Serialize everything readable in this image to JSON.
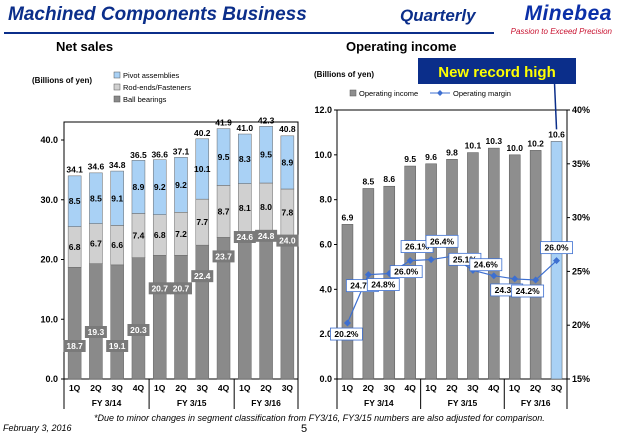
{
  "header": {
    "title": "Machined Components Business",
    "period": "Quarterly",
    "logo_name": "Minebea",
    "logo_tagline": "Passion to Exceed Precision"
  },
  "footer": {
    "note": "*Due to minor changes in segment classification from FY3/16, FY3/15 numbers are also adjusted for comparison.",
    "date": "February 3, 2016",
    "page": "5"
  },
  "colors": {
    "ball_bearings": "#8a8a8a",
    "rod_ends": "#d0d0d0",
    "pivot": "#a9d1f5",
    "operating_income": "#8e8e8e",
    "operating_income_latest": "#a9d1f5",
    "margin_line": "#3d6fd0",
    "banner": "#0b2e8a",
    "banner_text": "#ffff00",
    "title": "#0b2e8a"
  },
  "chart_data": [
    {
      "type": "bar",
      "stacked": true,
      "subtitle": "Net sales",
      "unit_label": "(Billions of yen)",
      "categories": [
        "1Q",
        "2Q",
        "3Q",
        "4Q",
        "1Q",
        "2Q",
        "3Q",
        "4Q",
        "1Q",
        "2Q",
        "3Q"
      ],
      "groups": [
        {
          "label": "FY 3/14",
          "from": 0,
          "to": 3
        },
        {
          "label": "FY 3/15",
          "from": 4,
          "to": 7
        },
        {
          "label": "FY 3/16",
          "from": 8,
          "to": 10
        }
      ],
      "series": [
        {
          "name": "Ball bearings",
          "values": [
            18.7,
            19.3,
            19.1,
            20.3,
            20.7,
            20.7,
            22.4,
            23.7,
            24.6,
            24.8,
            24.0
          ]
        },
        {
          "name": "Rod-ends/Fasteners",
          "values": [
            6.8,
            6.7,
            6.6,
            7.4,
            6.8,
            7.2,
            7.7,
            8.7,
            8.1,
            8.0,
            7.8
          ]
        },
        {
          "name": "Pivot assemblies",
          "values": [
            8.5,
            8.5,
            9.1,
            8.9,
            9.2,
            9.2,
            10.1,
            9.5,
            8.3,
            9.5,
            8.9
          ]
        }
      ],
      "totals": [
        34.1,
        34.6,
        34.8,
        36.5,
        36.6,
        37.1,
        40.2,
        41.9,
        41.0,
        42.3,
        40.8
      ],
      "y_ticks": [
        "0.0",
        "10.0",
        "20.0",
        "30.0",
        "40.0"
      ],
      "ylim": [
        0,
        46
      ]
    },
    {
      "type": "bar",
      "subtitle": "Operating income",
      "unit_label": "(Billions of yen)",
      "callout": "New record high",
      "categories": [
        "1Q",
        "2Q",
        "3Q",
        "4Q",
        "1Q",
        "2Q",
        "3Q",
        "4Q",
        "1Q",
        "2Q",
        "3Q"
      ],
      "groups": [
        {
          "label": "FY 3/14",
          "from": 0,
          "to": 3
        },
        {
          "label": "FY 3/15",
          "from": 4,
          "to": 7
        },
        {
          "label": "FY 3/16",
          "from": 8,
          "to": 10
        }
      ],
      "series": [
        {
          "name": "Operating income",
          "type": "bar",
          "axis": "left",
          "values": [
            6.9,
            8.5,
            8.6,
            9.5,
            9.6,
            9.8,
            10.1,
            10.3,
            10.0,
            10.2,
            10.6
          ]
        },
        {
          "name": "Operating margin",
          "type": "line",
          "axis": "right",
          "values": [
            20.2,
            24.7,
            24.8,
            26.0,
            26.1,
            26.4,
            25.1,
            24.6,
            24.3,
            24.2,
            26.0
          ]
        }
      ],
      "bar_labels": [
        "6.9",
        "8.5",
        "8.6",
        "9.5",
        "9.6",
        "9.8",
        "10.1",
        "10.3",
        "10.0",
        "10.2",
        "10.6"
      ],
      "line_labels": [
        "20.2%",
        "24.7%",
        "24.8%",
        "26.0%",
        "26.1%",
        "26.4%",
        "25.1%",
        "24.6%",
        "24.3%",
        "24.2%",
        "26.0%"
      ],
      "y_ticks": [
        "0.0",
        "2.0",
        "4.0",
        "6.0",
        "8.0",
        "10.0",
        "12.0"
      ],
      "ylim": [
        0,
        12
      ],
      "y2_ticks": [
        "15%",
        "20%",
        "25%",
        "30%",
        "35%",
        "40%"
      ],
      "y2lim": [
        15,
        40
      ]
    }
  ]
}
